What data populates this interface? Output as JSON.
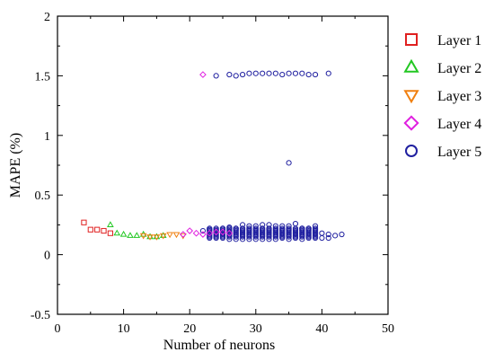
{
  "chart_data": {
    "type": "scatter",
    "title": "",
    "xlabel": "Number of neurons",
    "ylabel": "MAPE (%)",
    "xlim": [
      0,
      50
    ],
    "ylim": [
      -0.5,
      2
    ],
    "xticks": [
      "0",
      "10",
      "20",
      "30",
      "40",
      "50"
    ],
    "yticks": [
      "-0.5",
      "0",
      "0.5",
      "1",
      "1.5",
      "2"
    ],
    "grid": false,
    "legend_position": "right",
    "series": [
      {
        "name": "Layer 1",
        "marker": "square",
        "color": "#e02020",
        "points": [
          [
            4,
            0.27
          ],
          [
            5,
            0.21
          ],
          [
            6,
            0.21
          ],
          [
            7,
            0.2
          ],
          [
            8,
            0.18
          ]
        ]
      },
      {
        "name": "Layer 2",
        "marker": "triangle-up",
        "color": "#22c722",
        "points": [
          [
            8,
            0.25
          ],
          [
            9,
            0.18
          ],
          [
            10,
            0.17
          ],
          [
            11,
            0.16
          ],
          [
            12,
            0.16
          ],
          [
            13,
            0.17
          ],
          [
            14,
            0.15
          ],
          [
            15,
            0.15
          ],
          [
            16,
            0.16
          ]
        ]
      },
      {
        "name": "Layer 3",
        "marker": "triangle-down",
        "color": "#f08010",
        "points": [
          [
            13,
            0.16
          ],
          [
            14,
            0.15
          ],
          [
            15,
            0.15
          ],
          [
            16,
            0.16
          ],
          [
            17,
            0.17
          ],
          [
            18,
            0.17
          ],
          [
            19,
            0.16
          ]
        ]
      },
      {
        "name": "Layer 4",
        "marker": "diamond",
        "color": "#e020e0",
        "points": [
          [
            19,
            0.17
          ],
          [
            20,
            0.2
          ],
          [
            21,
            0.18
          ],
          [
            22,
            0.17
          ],
          [
            22,
            1.51
          ],
          [
            23,
            0.18
          ],
          [
            24,
            0.19
          ],
          [
            25,
            0.19
          ],
          [
            26,
            0.18
          ]
        ]
      },
      {
        "name": "Layer 5",
        "marker": "circle",
        "color": "#2020a0",
        "points": [
          [
            24,
            1.5
          ],
          [
            26,
            1.51
          ],
          [
            27,
            1.5
          ],
          [
            28,
            1.51
          ],
          [
            29,
            1.52
          ],
          [
            30,
            1.52
          ],
          [
            31,
            1.52
          ],
          [
            32,
            1.52
          ],
          [
            33,
            1.52
          ],
          [
            34,
            1.51
          ],
          [
            35,
            1.52
          ],
          [
            36,
            1.52
          ],
          [
            37,
            1.52
          ],
          [
            38,
            1.51
          ],
          [
            39,
            1.51
          ],
          [
            41,
            1.52
          ],
          [
            35,
            0.77
          ],
          [
            22,
            0.2
          ],
          [
            23,
            0.21
          ],
          [
            24,
            0.2
          ],
          [
            25,
            0.22
          ],
          [
            26,
            0.23
          ],
          [
            27,
            0.22
          ],
          [
            28,
            0.25
          ],
          [
            29,
            0.24
          ],
          [
            30,
            0.24
          ],
          [
            31,
            0.25
          ],
          [
            32,
            0.25
          ],
          [
            33,
            0.24
          ],
          [
            34,
            0.24
          ],
          [
            35,
            0.24
          ],
          [
            36,
            0.26
          ],
          [
            37,
            0.22
          ],
          [
            38,
            0.22
          ],
          [
            39,
            0.24
          ],
          [
            40,
            0.18
          ],
          [
            41,
            0.17
          ],
          [
            42,
            0.16
          ],
          [
            43,
            0.17
          ],
          [
            23,
            0.14
          ],
          [
            24,
            0.14
          ],
          [
            25,
            0.14
          ],
          [
            26,
            0.13
          ],
          [
            27,
            0.13
          ],
          [
            28,
            0.13
          ],
          [
            29,
            0.13
          ],
          [
            30,
            0.13
          ],
          [
            31,
            0.13
          ],
          [
            32,
            0.13
          ],
          [
            33,
            0.13
          ],
          [
            34,
            0.14
          ],
          [
            35,
            0.13
          ],
          [
            36,
            0.14
          ],
          [
            37,
            0.13
          ],
          [
            38,
            0.14
          ],
          [
            39,
            0.14
          ],
          [
            40,
            0.14
          ],
          [
            41,
            0.14
          ]
        ],
        "bands": [
          {
            "x_from": 23,
            "x_to": 39,
            "y_from": 0.15,
            "y_to": 0.22
          }
        ]
      }
    ]
  }
}
